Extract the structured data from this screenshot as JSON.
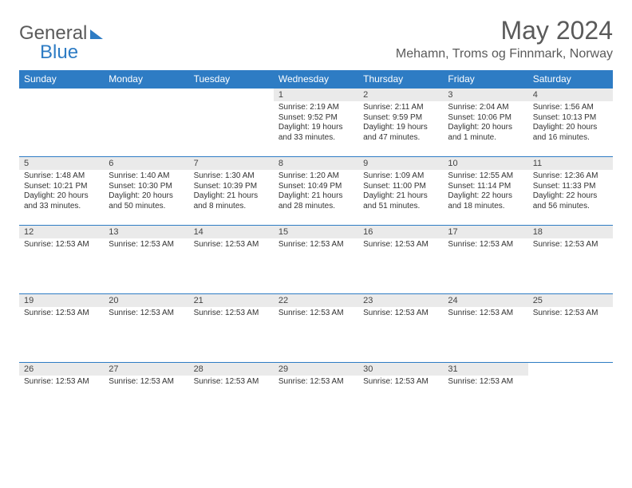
{
  "brand": {
    "part1": "General",
    "part2": "Blue"
  },
  "title": "May 2024",
  "location": "Mehamn, Troms og Finnmark, Norway",
  "colors": {
    "header_bg": "#2e7cc4",
    "header_text": "#ffffff",
    "daynum_bg": "#eaeaea",
    "border": "#2e7cc4",
    "body_text": "#333333",
    "brand_gray": "#5a5a5a",
    "brand_blue": "#2e7cc4",
    "background": "#ffffff"
  },
  "typography": {
    "title_fontsize": 32,
    "location_fontsize": 16,
    "dayhead_fontsize": 12,
    "daynum_fontsize": 11,
    "body_fontsize": 10
  },
  "day_names": [
    "Sunday",
    "Monday",
    "Tuesday",
    "Wednesday",
    "Thursday",
    "Friday",
    "Saturday"
  ],
  "weeks": [
    [
      {
        "num": "",
        "lines": []
      },
      {
        "num": "",
        "lines": []
      },
      {
        "num": "",
        "lines": []
      },
      {
        "num": "1",
        "lines": [
          "Sunrise: 2:19 AM",
          "Sunset: 9:52 PM",
          "Daylight: 19 hours",
          "and 33 minutes."
        ]
      },
      {
        "num": "2",
        "lines": [
          "Sunrise: 2:11 AM",
          "Sunset: 9:59 PM",
          "Daylight: 19 hours",
          "and 47 minutes."
        ]
      },
      {
        "num": "3",
        "lines": [
          "Sunrise: 2:04 AM",
          "Sunset: 10:06 PM",
          "Daylight: 20 hours",
          "and 1 minute."
        ]
      },
      {
        "num": "4",
        "lines": [
          "Sunrise: 1:56 AM",
          "Sunset: 10:13 PM",
          "Daylight: 20 hours",
          "and 16 minutes."
        ]
      }
    ],
    [
      {
        "num": "5",
        "lines": [
          "Sunrise: 1:48 AM",
          "Sunset: 10:21 PM",
          "Daylight: 20 hours",
          "and 33 minutes."
        ]
      },
      {
        "num": "6",
        "lines": [
          "Sunrise: 1:40 AM",
          "Sunset: 10:30 PM",
          "Daylight: 20 hours",
          "and 50 minutes."
        ]
      },
      {
        "num": "7",
        "lines": [
          "Sunrise: 1:30 AM",
          "Sunset: 10:39 PM",
          "Daylight: 21 hours",
          "and 8 minutes."
        ]
      },
      {
        "num": "8",
        "lines": [
          "Sunrise: 1:20 AM",
          "Sunset: 10:49 PM",
          "Daylight: 21 hours",
          "and 28 minutes."
        ]
      },
      {
        "num": "9",
        "lines": [
          "Sunrise: 1:09 AM",
          "Sunset: 11:00 PM",
          "Daylight: 21 hours",
          "and 51 minutes."
        ]
      },
      {
        "num": "10",
        "lines": [
          "Sunrise: 12:55 AM",
          "Sunset: 11:14 PM",
          "Daylight: 22 hours",
          "and 18 minutes."
        ]
      },
      {
        "num": "11",
        "lines": [
          "Sunrise: 12:36 AM",
          "Sunset: 11:33 PM",
          "Daylight: 22 hours",
          "and 56 minutes."
        ]
      }
    ],
    [
      {
        "num": "12",
        "lines": [
          "Sunrise: 12:53 AM"
        ]
      },
      {
        "num": "13",
        "lines": [
          "Sunrise: 12:53 AM"
        ]
      },
      {
        "num": "14",
        "lines": [
          "Sunrise: 12:53 AM"
        ]
      },
      {
        "num": "15",
        "lines": [
          "Sunrise: 12:53 AM"
        ]
      },
      {
        "num": "16",
        "lines": [
          "Sunrise: 12:53 AM"
        ]
      },
      {
        "num": "17",
        "lines": [
          "Sunrise: 12:53 AM"
        ]
      },
      {
        "num": "18",
        "lines": [
          "Sunrise: 12:53 AM"
        ]
      }
    ],
    [
      {
        "num": "19",
        "lines": [
          "Sunrise: 12:53 AM"
        ]
      },
      {
        "num": "20",
        "lines": [
          "Sunrise: 12:53 AM"
        ]
      },
      {
        "num": "21",
        "lines": [
          "Sunrise: 12:53 AM"
        ]
      },
      {
        "num": "22",
        "lines": [
          "Sunrise: 12:53 AM"
        ]
      },
      {
        "num": "23",
        "lines": [
          "Sunrise: 12:53 AM"
        ]
      },
      {
        "num": "24",
        "lines": [
          "Sunrise: 12:53 AM"
        ]
      },
      {
        "num": "25",
        "lines": [
          "Sunrise: 12:53 AM"
        ]
      }
    ],
    [
      {
        "num": "26",
        "lines": [
          "Sunrise: 12:53 AM"
        ]
      },
      {
        "num": "27",
        "lines": [
          "Sunrise: 12:53 AM"
        ]
      },
      {
        "num": "28",
        "lines": [
          "Sunrise: 12:53 AM"
        ]
      },
      {
        "num": "29",
        "lines": [
          "Sunrise: 12:53 AM"
        ]
      },
      {
        "num": "30",
        "lines": [
          "Sunrise: 12:53 AM"
        ]
      },
      {
        "num": "31",
        "lines": [
          "Sunrise: 12:53 AM"
        ]
      },
      {
        "num": "",
        "lines": []
      }
    ]
  ]
}
